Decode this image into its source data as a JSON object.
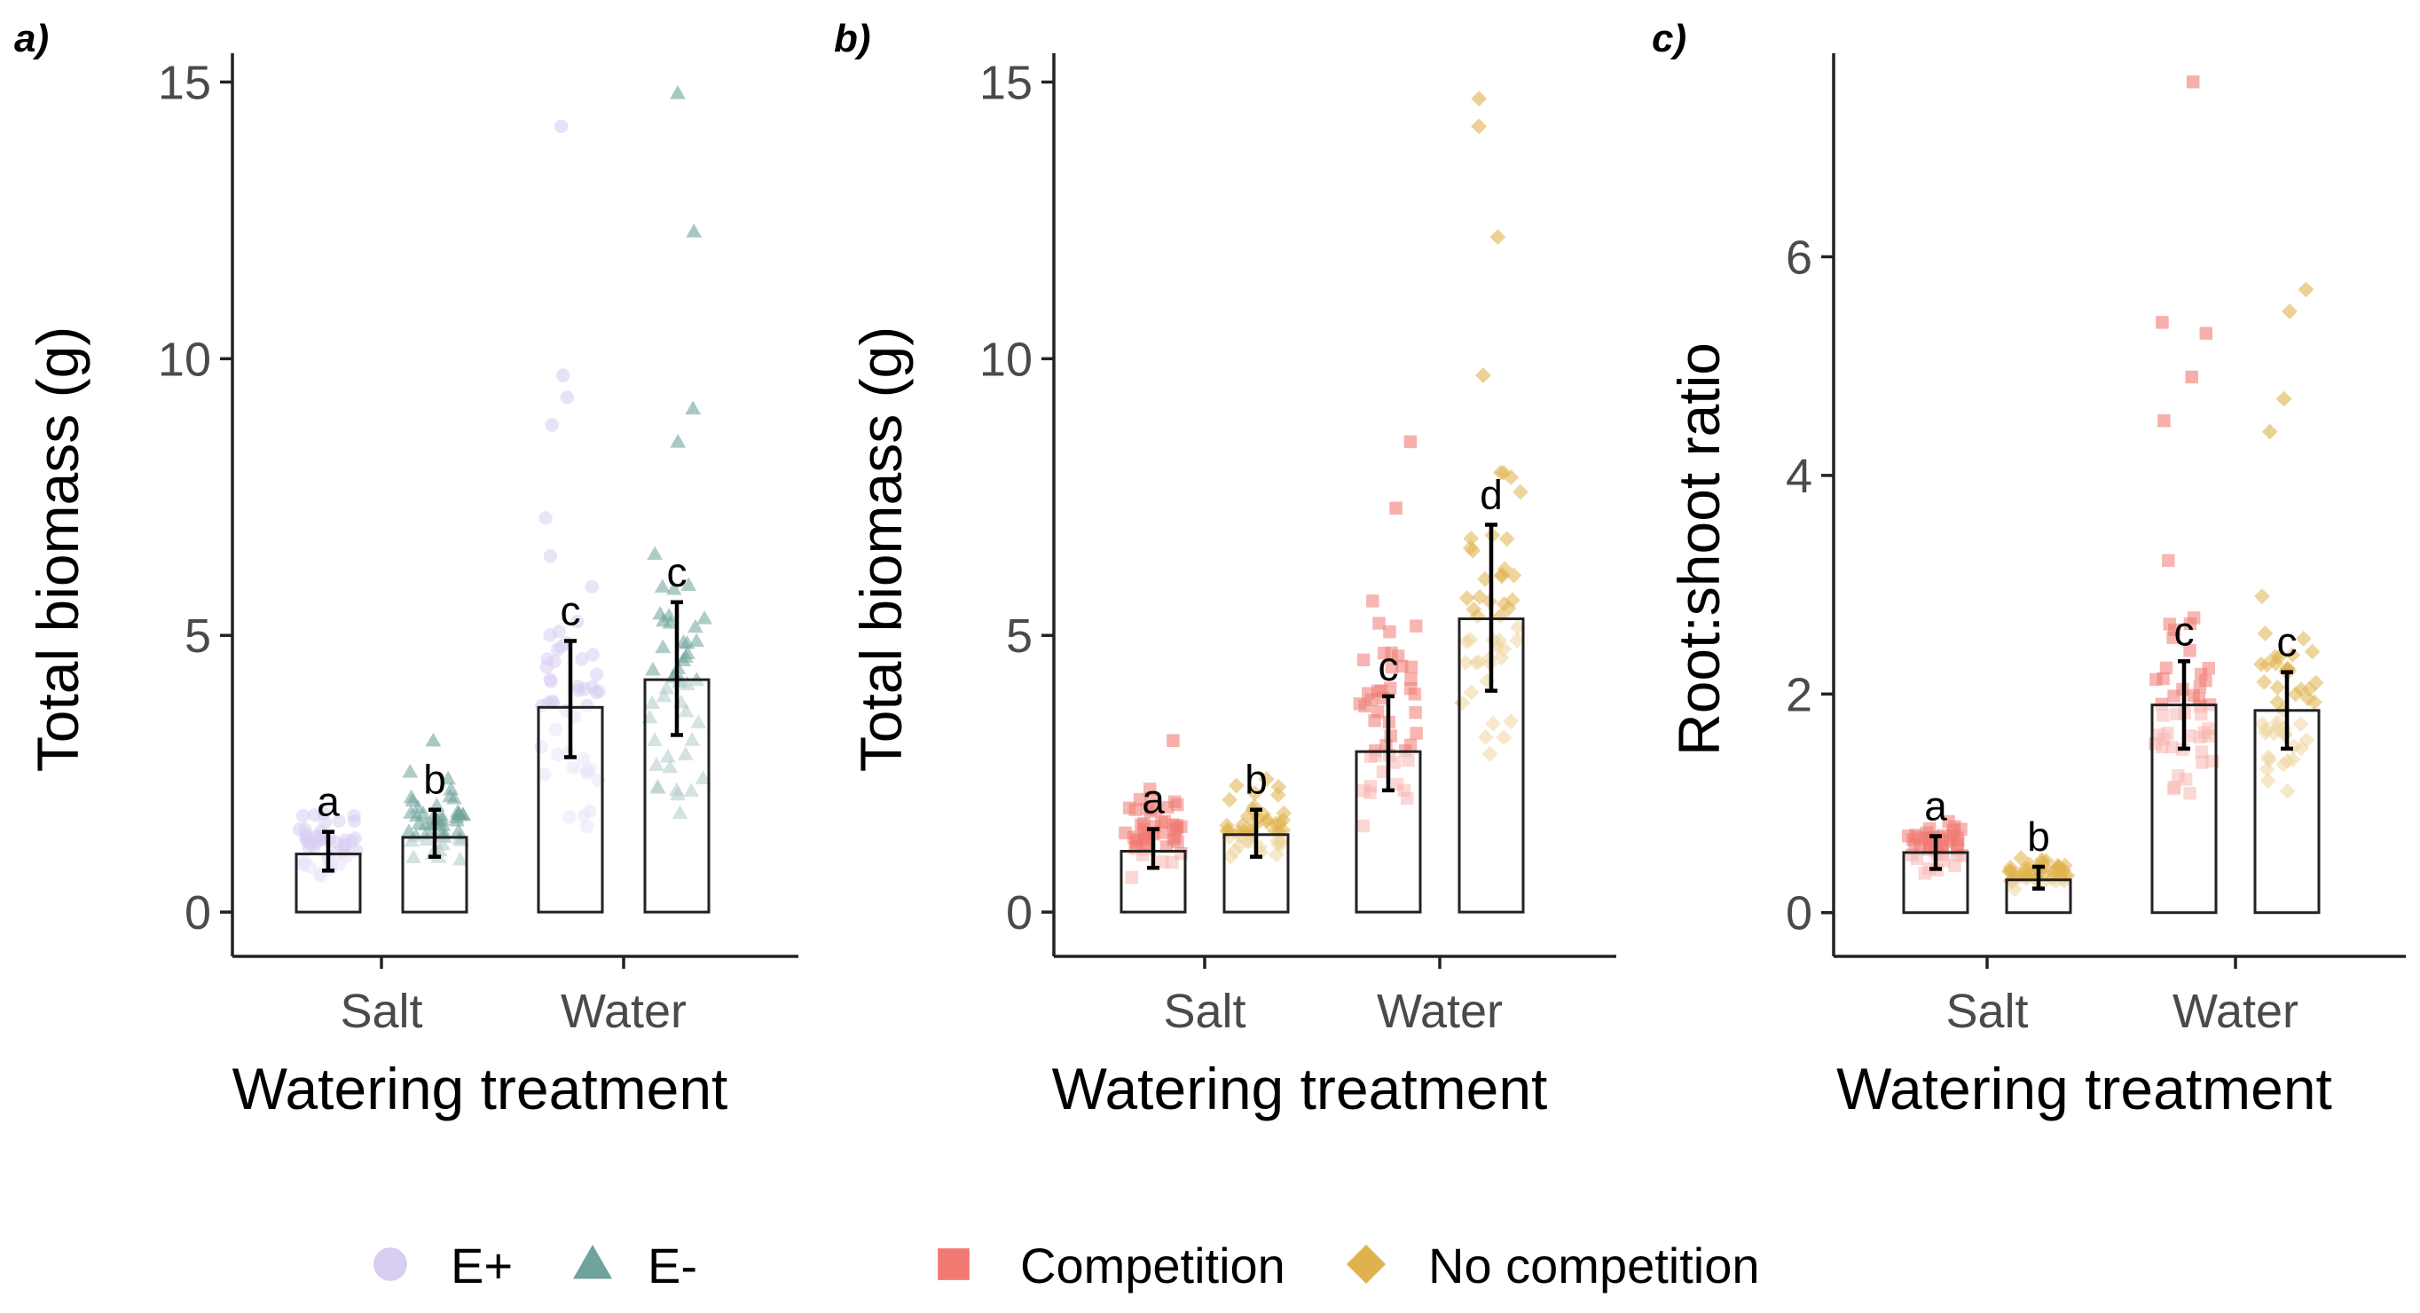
{
  "colors": {
    "Eplus": "#d9cdf2",
    "Eminus": "#6fa39b",
    "Competition": "#f07a72",
    "NoCompetition": "#e0b24d"
  },
  "legend": [
    {
      "label": "E+",
      "shape": "circle-marker",
      "color_key": "Eplus"
    },
    {
      "label": "E-",
      "shape": "triangle-marker",
      "color_key": "Eminus"
    },
    {
      "label": "Competition",
      "shape": "square-marker",
      "color_key": "Competition"
    },
    {
      "label": "No competition",
      "shape": "diamond-marker",
      "color_key": "NoCompetition"
    }
  ],
  "chart_data": [
    {
      "panel_label": "a)",
      "type": "bar",
      "ylabel": "Total biomass (g)",
      "xlabel": "Watering treatment",
      "categories": [
        "Salt",
        "Water"
      ],
      "ylim": [
        -0.8,
        15.2
      ],
      "yticks": [
        0,
        5,
        10,
        15
      ],
      "series": [
        {
          "name": "E+",
          "shape": "circle",
          "color_key": "Eplus",
          "values": [
            1.05,
            3.7
          ],
          "err_low": [
            0.75,
            2.8
          ],
          "err_high": [
            1.45,
            4.9
          ],
          "letters": [
            "a",
            "c"
          ],
          "spread": [
            [
              0.5,
              2.2
            ],
            [
              0.8,
              7.5
            ]
          ],
          "outliers": [
            [],
            [
              14.2,
              9.7,
              9.3,
              8.8
            ]
          ],
          "n": 45
        },
        {
          "name": "E-",
          "shape": "triangle",
          "color_key": "Eminus",
          "values": [
            1.35,
            4.2
          ],
          "err_low": [
            1.0,
            3.2
          ],
          "err_high": [
            1.85,
            5.6
          ],
          "letters": [
            "b",
            "c"
          ],
          "spread": [
            [
              0.6,
              2.7
            ],
            [
              0.9,
              8.0
            ]
          ],
          "outliers": [
            [
              3.1
            ],
            [
              14.8,
              12.3,
              9.1,
              8.5
            ]
          ],
          "n": 45
        }
      ]
    },
    {
      "panel_label": "b)",
      "type": "bar",
      "ylabel": "Total biomass (g)",
      "xlabel": "Watering treatment",
      "categories": [
        "Salt",
        "Water"
      ],
      "ylim": [
        -0.8,
        15.2
      ],
      "yticks": [
        0,
        5,
        10,
        15
      ],
      "series": [
        {
          "name": "Competition",
          "shape": "square",
          "color_key": "Competition",
          "values": [
            1.1,
            2.9
          ],
          "err_low": [
            0.8,
            2.2
          ],
          "err_high": [
            1.5,
            3.9
          ],
          "letters": [
            "a",
            "c"
          ],
          "spread": [
            [
              0.5,
              2.5
            ],
            [
              0.9,
              6.5
            ]
          ],
          "outliers": [
            [
              3.1
            ],
            [
              8.5,
              7.3
            ]
          ],
          "n": 45
        },
        {
          "name": "No competition",
          "shape": "diamond",
          "color_key": "NoCompetition",
          "values": [
            1.4,
            5.3
          ],
          "err_low": [
            1.0,
            4.0
          ],
          "err_high": [
            1.85,
            7.0
          ],
          "letters": [
            "b",
            "d"
          ],
          "spread": [
            [
              0.6,
              2.6
            ],
            [
              2.1,
              9.0
            ]
          ],
          "outliers": [
            [],
            [
              14.7,
              14.2,
              12.2,
              9.7
            ]
          ],
          "n": 45
        }
      ]
    },
    {
      "panel_label": "c)",
      "type": "bar",
      "ylabel": "Root:shoot ratio",
      "xlabel": "Watering treatment",
      "categories": [
        "Salt",
        "Water"
      ],
      "ylim": [
        -0.4,
        7.7
      ],
      "yticks": [
        0,
        2,
        4,
        6
      ],
      "series": [
        {
          "name": "Competition",
          "shape": "square",
          "color_key": "Competition",
          "values": [
            0.55,
            1.9
          ],
          "err_low": [
            0.4,
            1.5
          ],
          "err_high": [
            0.7,
            2.3
          ],
          "letters": [
            "a",
            "c"
          ],
          "spread": [
            [
              0.3,
              0.95
            ],
            [
              0.6,
              3.6
            ]
          ],
          "outliers": [
            [],
            [
              7.6,
              5.4,
              5.3,
              4.9,
              4.5
            ]
          ],
          "n": 45
        },
        {
          "name": "No competition",
          "shape": "diamond",
          "color_key": "NoCompetition",
          "values": [
            0.3,
            1.85
          ],
          "err_low": [
            0.22,
            1.5
          ],
          "err_high": [
            0.42,
            2.2
          ],
          "letters": [
            "b",
            "c"
          ],
          "spread": [
            [
              0.15,
              0.6
            ],
            [
              0.9,
              3.2
            ]
          ],
          "outliers": [
            [],
            [
              5.7,
              5.5,
              4.7,
              4.4
            ]
          ],
          "n": 45
        }
      ]
    }
  ]
}
